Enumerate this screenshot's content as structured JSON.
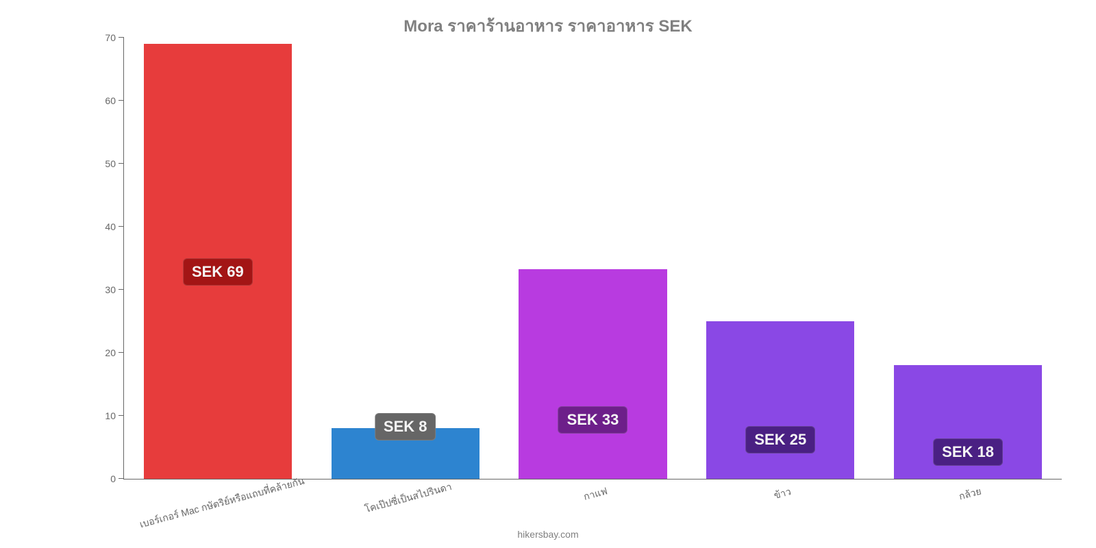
{
  "chart": {
    "type": "bar",
    "title": "Mora ราคาร้านอาหาร ราคาอาหาร SEK",
    "title_color": "#808080",
    "title_fontsize": 24,
    "background_color": "#ffffff",
    "axis_color": "#666666",
    "label_fontsize": 14,
    "value_label_fontsize": 22,
    "source": "hikersbay.com",
    "ylim": [
      0,
      70
    ],
    "ytick_step": 10,
    "y_ticks": [
      0,
      10,
      20,
      30,
      40,
      50,
      60,
      70
    ],
    "bar_width_pct": 15.8,
    "bar_spacing_pct": 20,
    "bar_start_pct": 2.1,
    "bars": [
      {
        "category": "เบอร์เกอร์ Mac กษัตริย์หรือแถบที่คล้ายกัน",
        "value": 69,
        "value_label": "SEK 69",
        "bar_color": "#e73c3c",
        "badge_color": "#a31515"
      },
      {
        "category": "โคเป๊ปซี่เป็นสไปรินดา",
        "value": 8,
        "value_label": "SEK 8",
        "bar_color": "#2d84d0",
        "badge_color": "#666666"
      },
      {
        "category": "กาแฟ",
        "value": 33.3,
        "value_label": "SEK 33",
        "bar_color": "#b83be0",
        "badge_color": "#6d1f8a"
      },
      {
        "category": "ข้าว",
        "value": 25,
        "value_label": "SEK 25",
        "bar_color": "#8a48e5",
        "badge_color": "#4a2083"
      },
      {
        "category": "กล้วย",
        "value": 18,
        "value_label": "SEK 18",
        "bar_color": "#8a48e5",
        "badge_color": "#4a2083"
      }
    ]
  }
}
